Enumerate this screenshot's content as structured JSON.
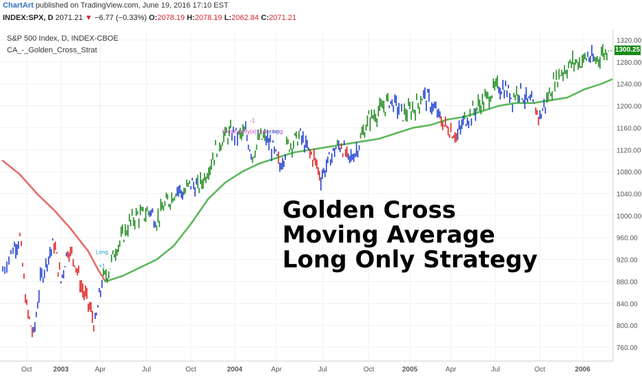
{
  "header": {
    "author": "ChartArt",
    "published_text": "published on TradingView.com, June 19, 2016 17:10 EST",
    "symbol": "INDEX:SPX, D",
    "last": "2071.21",
    "change_arrow": "▼",
    "change": "−6.77 (−0.33%)",
    "o_label": "O:",
    "o_value": "2078.19",
    "h_label": "H:",
    "h_value": "2078.19",
    "l_label": "L:",
    "l_value": "2062.84",
    "c_label": "C:",
    "c_value": "2071.21"
  },
  "legend": {
    "series_name": "S&P 500 Index, D, INDEX-CBOE",
    "strategy_name": "CA_-_Golden_Cross_Strat"
  },
  "headline": {
    "line1": "Golden Cross",
    "line2": "Moving Average",
    "line3": "Long Only Strategy"
  },
  "current_price_badge": "1300.25",
  "colors": {
    "bullish_trend": "#1f8a1f",
    "bearish_trend": "#e02020",
    "neutral": "#1f3fd0",
    "ma_above": "#5cb85c",
    "ma_below": "#e86a6a",
    "signal": "#2aa0d6",
    "exit_text": "#c040c0"
  },
  "chart_data": {
    "type": "line",
    "title": "S&P 500 Index, D, INDEX-CBOE",
    "ylim": [
      740,
      1330
    ],
    "y_ticks": [
      760,
      800,
      840,
      880,
      920,
      960,
      1000,
      1040,
      1080,
      1120,
      1160,
      1200,
      1240,
      1280,
      1320
    ],
    "x_ticks": [
      {
        "label": "Oct",
        "t": 0.07
      },
      {
        "label": "2003",
        "t": 0.17
      },
      {
        "label": "Apr",
        "t": 0.285
      },
      {
        "label": "Jul",
        "t": 0.42
      },
      {
        "label": "Oct",
        "t": 0.55
      },
      {
        "label": "2004",
        "t": 0.678
      },
      {
        "label": "Apr",
        "t": 0.8
      },
      {
        "label": "Jul",
        "t": 0.935
      },
      {
        "label": "Oct",
        "t": 1.07
      },
      {
        "label": "2005",
        "t": 1.19
      },
      {
        "label": "Apr",
        "t": 1.31
      },
      {
        "label": "Jul",
        "t": 1.44
      },
      {
        "label": "Oct",
        "t": 1.57
      },
      {
        "label": "2006",
        "t": 1.695
      }
    ],
    "x_range": [
      0,
      1.78
    ],
    "series": [
      {
        "name": "Price",
        "x": [
          0.0,
          0.03,
          0.05,
          0.07,
          0.09,
          0.11,
          0.13,
          0.15,
          0.17,
          0.19,
          0.21,
          0.23,
          0.25,
          0.27,
          0.29,
          0.31,
          0.33,
          0.35,
          0.37,
          0.39,
          0.41,
          0.43,
          0.45,
          0.47,
          0.49,
          0.51,
          0.53,
          0.55,
          0.57,
          0.59,
          0.61,
          0.63,
          0.65,
          0.67,
          0.69,
          0.71,
          0.73,
          0.75,
          0.77,
          0.79,
          0.81,
          0.83,
          0.85,
          0.87,
          0.89,
          0.91,
          0.93,
          0.95,
          0.97,
          0.99,
          1.01,
          1.03,
          1.05,
          1.07,
          1.09,
          1.11,
          1.13,
          1.15,
          1.17,
          1.19,
          1.21,
          1.23,
          1.25,
          1.27,
          1.29,
          1.31,
          1.33,
          1.35,
          1.37,
          1.39,
          1.41,
          1.43,
          1.45,
          1.47,
          1.49,
          1.51,
          1.53,
          1.55,
          1.57,
          1.59,
          1.61,
          1.63,
          1.65,
          1.67,
          1.69,
          1.71,
          1.73,
          1.75,
          1.77
        ],
        "values": [
          900,
          940,
          960,
          830,
          780,
          880,
          920,
          950,
          880,
          940,
          920,
          870,
          840,
          800,
          880,
          900,
          940,
          960,
          985,
          1000,
          1000,
          1010,
          990,
          1015,
          1030,
          1050,
          1040,
          1060,
          1050,
          1070,
          1100,
          1130,
          1145,
          1150,
          1145,
          1150,
          1110,
          1140,
          1140,
          1120,
          1090,
          1125,
          1135,
          1145,
          1120,
          1105,
          1070,
          1095,
          1120,
          1130,
          1100,
          1115,
          1145,
          1175,
          1185,
          1195,
          1210,
          1200,
          1185,
          1190,
          1200,
          1220,
          1205,
          1185,
          1165,
          1155,
          1145,
          1175,
          1185,
          1200,
          1210,
          1225,
          1235,
          1230,
          1215,
          1230,
          1210,
          1200,
          1180,
          1210,
          1240,
          1260,
          1270,
          1280,
          1280,
          1290,
          1280,
          1295,
          1300
        ]
      },
      {
        "name": "200-day MA",
        "x": [
          0.0,
          0.05,
          0.1,
          0.15,
          0.2,
          0.25,
          0.28,
          0.3,
          0.35,
          0.4,
          0.45,
          0.5,
          0.55,
          0.6,
          0.65,
          0.7,
          0.75,
          0.8,
          0.85,
          0.9,
          0.95,
          1.0,
          1.05,
          1.1,
          1.15,
          1.2,
          1.25,
          1.3,
          1.35,
          1.4,
          1.45,
          1.5,
          1.55,
          1.6,
          1.65,
          1.7,
          1.75,
          1.78
        ],
        "values": [
          1100,
          1075,
          1040,
          1010,
          975,
          935,
          900,
          880,
          890,
          905,
          920,
          945,
          985,
          1030,
          1060,
          1080,
          1095,
          1105,
          1115,
          1120,
          1125,
          1130,
          1135,
          1140,
          1150,
          1160,
          1165,
          1175,
          1180,
          1190,
          1200,
          1205,
          1205,
          1210,
          1215,
          1230,
          1240,
          1248
        ]
      }
    ],
    "annotations": [
      {
        "text": "Long",
        "x": 0.29,
        "y": 930
      },
      {
        "text": "+1",
        "x": 0.29,
        "y": 905
      },
      {
        "text": "-1",
        "x": 0.73,
        "y": 1170
      },
      {
        "text": "Close entry(s) order long",
        "x": 0.73,
        "y": 1150
      },
      {
        "text": "Long",
        "x": 0.79,
        "y": 1150
      }
    ]
  }
}
